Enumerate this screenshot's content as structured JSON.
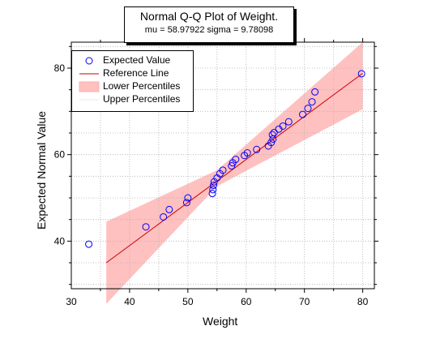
{
  "title": {
    "main": "Normal Q-Q Plot of Weight.",
    "sub": "mu = 58.97922  sigma = 9.78098"
  },
  "legend": {
    "expected": "Expected Value",
    "reference": "Reference Line",
    "lower": "Lower Percentiles",
    "upper": "Upper Percentiles"
  },
  "colors": {
    "marker": "#0000ff",
    "line": "#cc0000",
    "band": "#ffc0c0",
    "grid": "#b0b0b0"
  },
  "chart_data": {
    "type": "scatter",
    "xlabel": "Weight",
    "ylabel": "Expected Normal Value",
    "xlim": [
      30,
      82
    ],
    "ylim": [
      29,
      86
    ],
    "xticks": [
      30,
      40,
      50,
      60,
      70,
      80
    ],
    "yticks": [
      40,
      60,
      80
    ],
    "grid": true,
    "legend_position": "top-left",
    "series": [
      {
        "name": "Expected Value",
        "points": [
          [
            33.0,
            39.3
          ],
          [
            42.8,
            43.3
          ],
          [
            45.8,
            45.6
          ],
          [
            46.8,
            47.3
          ],
          [
            49.8,
            48.9
          ],
          [
            50.0,
            50.0
          ],
          [
            54.2,
            51.0
          ],
          [
            54.3,
            51.9
          ],
          [
            54.4,
            52.9
          ],
          [
            54.5,
            53.7
          ],
          [
            55.0,
            54.6
          ],
          [
            55.5,
            55.6
          ],
          [
            56.0,
            56.4
          ],
          [
            57.5,
            57.4
          ],
          [
            57.7,
            58.1
          ],
          [
            58.2,
            58.9
          ],
          [
            59.7,
            59.8
          ],
          [
            60.2,
            60.4
          ],
          [
            61.8,
            61.2
          ],
          [
            63.8,
            62.0
          ],
          [
            64.3,
            62.8
          ],
          [
            64.6,
            63.6
          ],
          [
            64.5,
            64.6
          ],
          [
            64.8,
            65.1
          ],
          [
            65.6,
            65.9
          ],
          [
            66.3,
            66.6
          ],
          [
            67.3,
            67.6
          ],
          [
            69.7,
            69.3
          ],
          [
            70.6,
            70.7
          ],
          [
            71.3,
            72.2
          ],
          [
            71.8,
            74.5
          ],
          [
            79.8,
            78.7
          ]
        ]
      },
      {
        "name": "Reference Line",
        "x": [
          36,
          80
        ],
        "y": [
          35.0,
          78.8
        ]
      },
      {
        "name": "Lower Percentiles",
        "x": [
          36,
          55,
          80
        ],
        "y": [
          25.5,
          52.7,
          70.5
        ]
      },
      {
        "name": "Upper Percentiles",
        "x": [
          36,
          55,
          80
        ],
        "y": [
          44.5,
          56.4,
          86.0
        ]
      }
    ]
  }
}
